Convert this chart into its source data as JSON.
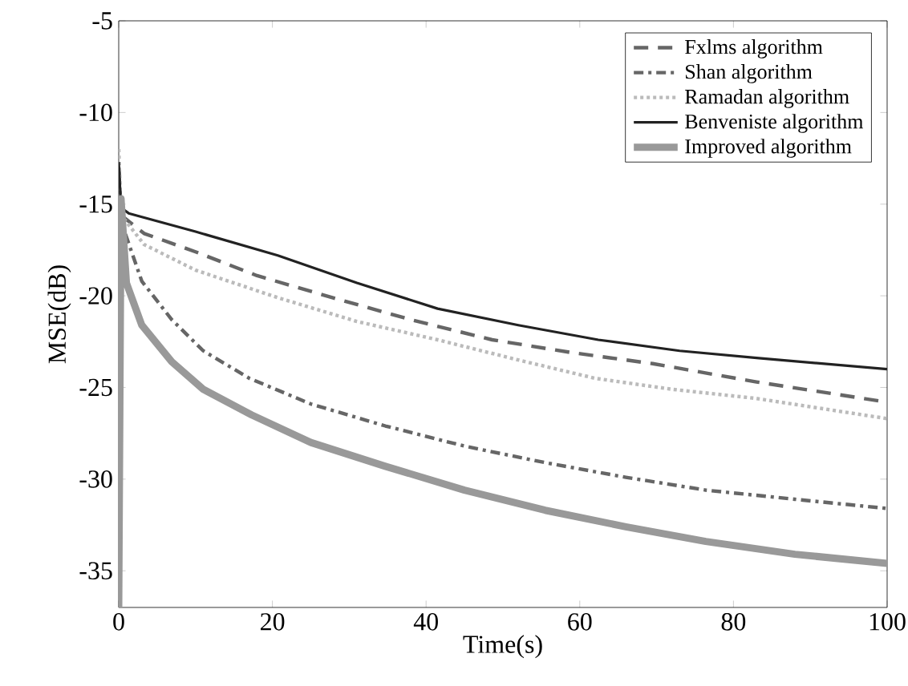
{
  "chart_data": {
    "type": "line",
    "xlabel": "Time(s)",
    "ylabel": "MSE(dB)",
    "xlim": [
      0,
      100
    ],
    "ylim": [
      -37,
      -5
    ],
    "xticks": [
      0,
      20,
      40,
      60,
      80,
      100
    ],
    "yticks": [
      -35,
      -30,
      -25,
      -20,
      -15,
      -10,
      -5
    ],
    "legend": "top right",
    "grid": false,
    "series": [
      {
        "name": "Fxlms algorithm",
        "color": "#666666",
        "line_style": "dashed",
        "x": [
          0,
          0.3,
          3.3,
          10,
          18,
          27.8,
          38,
          48.6,
          59,
          69.5,
          83,
          100
        ],
        "values": [
          -13,
          -15.6,
          -16.6,
          -17.6,
          -18.9,
          -20.1,
          -21.3,
          -22.4,
          -23.1,
          -23.7,
          -24.7,
          -25.8
        ]
      },
      {
        "name": "Shan algorithm",
        "color": "#666666",
        "line_style": "dashdot",
        "x": [
          0,
          0.3,
          0.6,
          3,
          6.9,
          11,
          17,
          25,
          34.7,
          45,
          55.5,
          66,
          76.4,
          88,
          100
        ],
        "values": [
          -13,
          -15.6,
          -16.3,
          -19.2,
          -21.3,
          -23,
          -24.5,
          -25.9,
          -27.1,
          -28.2,
          -29.1,
          -29.9,
          -30.6,
          -31.1,
          -31.6
        ]
      },
      {
        "name": "Ramadan algorithm",
        "color": "#bbbbbb",
        "line_style": "dotted",
        "x": [
          0,
          0.3,
          3.3,
          10,
          20.7,
          31,
          41.5,
          52,
          62,
          72,
          83,
          100
        ],
        "values": [
          -12,
          -15.6,
          -17.2,
          -18.6,
          -20.1,
          -21.4,
          -22.4,
          -23.5,
          -24.5,
          -25.1,
          -25.6,
          -26.7
        ]
      },
      {
        "name": "Benveniste algorithm",
        "color": "#222222",
        "line_style": "solid",
        "x": [
          0,
          0.3,
          1.3,
          10,
          20.7,
          31,
          41.5,
          52,
          62.4,
          73,
          83.3,
          100
        ],
        "values": [
          -12.7,
          -15.2,
          -15.5,
          -16.5,
          -17.8,
          -19.3,
          -20.7,
          -21.6,
          -22.4,
          -23,
          -23.4,
          -24.0
        ]
      },
      {
        "name": "Improved algorithm",
        "color": "#999999",
        "line_style": "solid",
        "x": [
          0,
          0.3,
          1,
          3,
          6.9,
          11,
          17.3,
          25,
          34.7,
          45,
          55.5,
          66,
          76.4,
          88,
          100
        ],
        "values": [
          -37,
          -14.7,
          -19.3,
          -21.6,
          -23.6,
          -25.1,
          -26.5,
          -28,
          -29.3,
          -30.6,
          -31.7,
          -32.6,
          -33.4,
          -34.1,
          -34.6
        ]
      }
    ]
  }
}
